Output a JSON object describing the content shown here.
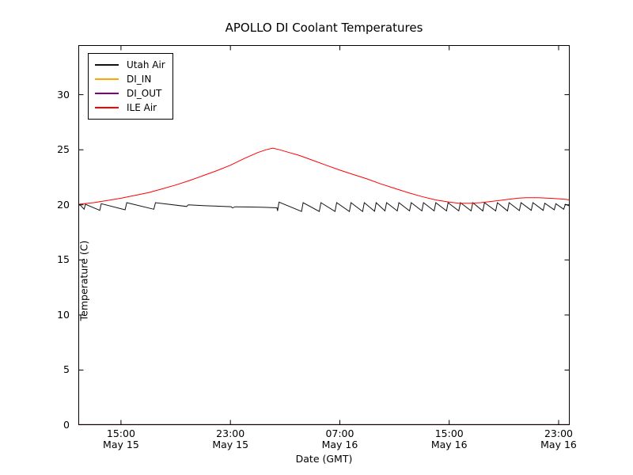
{
  "chart_data": {
    "type": "line",
    "title": "APOLLO DI Coolant Temperatures",
    "xlabel": "Date (GMT)",
    "ylabel": "Temperature (C)",
    "x_unit": "hours since May 15 00:00 GMT",
    "xlim_hours": [
      11.88,
      47.81
    ],
    "ylim": [
      0,
      34.5
    ],
    "y_ticks": [
      0,
      5,
      10,
      15,
      20,
      25,
      30
    ],
    "x_ticks": [
      {
        "t": 15,
        "time": "15:00",
        "date": "May 15"
      },
      {
        "t": 23,
        "time": "23:00",
        "date": "May 15"
      },
      {
        "t": 31,
        "time": "07:00",
        "date": "May 16"
      },
      {
        "t": 39,
        "time": "15:00",
        "date": "May 16"
      },
      {
        "t": 47,
        "time": "23:00",
        "date": "May 16"
      }
    ],
    "grid": false,
    "legend": {
      "position": "upper left",
      "entries": [
        {
          "label": "Utah Air",
          "color": "#111111"
        },
        {
          "label": "DI_IN",
          "color": "#ffa500"
        },
        {
          "label": "DI_OUT",
          "color": "#800080"
        },
        {
          "label": "ILE Air",
          "color": "#ff0000"
        }
      ]
    },
    "series": [
      {
        "name": "Utah Air",
        "color": "#111111",
        "width": 1,
        "opacity": 1,
        "points": [
          [
            11.88,
            19.95
          ],
          [
            12.0,
            20.0
          ],
          [
            12.3,
            19.6
          ],
          [
            12.4,
            20.05
          ],
          [
            13.45,
            19.5
          ],
          [
            13.56,
            20.1
          ],
          [
            15.3,
            19.55
          ],
          [
            15.42,
            20.2
          ],
          [
            17.4,
            19.6
          ],
          [
            17.52,
            20.2
          ],
          [
            19.8,
            19.85
          ],
          [
            19.92,
            20.0
          ],
          [
            21.0,
            19.93
          ],
          [
            22.0,
            19.88
          ],
          [
            23.05,
            19.83
          ],
          [
            23.15,
            19.72
          ],
          [
            23.35,
            19.82
          ],
          [
            24.5,
            19.8
          ],
          [
            25.5,
            19.77
          ],
          [
            26.4,
            19.73
          ],
          [
            26.45,
            19.45
          ],
          [
            26.55,
            20.25
          ],
          [
            28.2,
            19.4
          ],
          [
            28.32,
            20.2
          ],
          [
            29.5,
            19.4
          ],
          [
            29.62,
            20.2
          ],
          [
            30.65,
            19.4
          ],
          [
            30.77,
            20.2
          ],
          [
            31.7,
            19.4
          ],
          [
            31.82,
            20.2
          ],
          [
            32.67,
            19.4
          ],
          [
            32.79,
            20.2
          ],
          [
            33.54,
            19.42
          ],
          [
            33.66,
            20.2
          ],
          [
            34.3,
            19.45
          ],
          [
            34.42,
            20.2
          ],
          [
            35.2,
            19.45
          ],
          [
            35.32,
            20.2
          ],
          [
            36.1,
            19.45
          ],
          [
            36.22,
            20.2
          ],
          [
            37.0,
            19.45
          ],
          [
            37.12,
            20.2
          ],
          [
            37.9,
            19.45
          ],
          [
            38.02,
            20.2
          ],
          [
            38.8,
            19.45
          ],
          [
            38.92,
            20.2
          ],
          [
            39.7,
            19.45
          ],
          [
            39.82,
            20.2
          ],
          [
            40.6,
            19.45
          ],
          [
            40.72,
            20.2
          ],
          [
            41.46,
            19.45
          ],
          [
            41.58,
            20.2
          ],
          [
            42.4,
            19.45
          ],
          [
            42.52,
            20.2
          ],
          [
            43.26,
            19.45
          ],
          [
            43.38,
            20.2
          ],
          [
            44.13,
            19.48
          ],
          [
            44.25,
            20.2
          ],
          [
            45.0,
            19.5
          ],
          [
            45.12,
            20.2
          ],
          [
            45.87,
            19.5
          ],
          [
            45.99,
            20.15
          ],
          [
            46.68,
            19.55
          ],
          [
            46.8,
            20.1
          ],
          [
            47.37,
            19.6
          ],
          [
            47.49,
            20.05
          ],
          [
            47.81,
            19.9
          ]
        ]
      },
      {
        "name": "DI_IN",
        "color": "#ffa500",
        "width": 1,
        "opacity": 1,
        "points": [
          [
            11.88,
            0
          ],
          [
            47.81,
            0
          ]
        ]
      },
      {
        "name": "DI_OUT",
        "color": "#800080",
        "width": 1,
        "opacity": 0.8,
        "points": [
          [
            11.88,
            0
          ],
          [
            47.81,
            0
          ]
        ]
      },
      {
        "name": "ILE Air",
        "color": "#ff0000",
        "width": 1,
        "opacity": 1,
        "points": [
          [
            11.88,
            20.05
          ],
          [
            13,
            20.2
          ],
          [
            14,
            20.4
          ],
          [
            15,
            20.6
          ],
          [
            16,
            20.85
          ],
          [
            17,
            21.1
          ],
          [
            18,
            21.45
          ],
          [
            19,
            21.8
          ],
          [
            20,
            22.2
          ],
          [
            21,
            22.65
          ],
          [
            22,
            23.1
          ],
          [
            23,
            23.6
          ],
          [
            24,
            24.2
          ],
          [
            25,
            24.75
          ],
          [
            25.6,
            25.0
          ],
          [
            26.1,
            25.15
          ],
          [
            26.6,
            25.0
          ],
          [
            27.3,
            24.75
          ],
          [
            28,
            24.5
          ],
          [
            29,
            24.05
          ],
          [
            30,
            23.6
          ],
          [
            31,
            23.15
          ],
          [
            32,
            22.75
          ],
          [
            33,
            22.35
          ],
          [
            34,
            21.9
          ],
          [
            35,
            21.5
          ],
          [
            36,
            21.1
          ],
          [
            37,
            20.75
          ],
          [
            38,
            20.45
          ],
          [
            39,
            20.25
          ],
          [
            39.7,
            20.15
          ],
          [
            40.5,
            20.15
          ],
          [
            41.3,
            20.2
          ],
          [
            42,
            20.3
          ],
          [
            43,
            20.45
          ],
          [
            44,
            20.6
          ],
          [
            44.6,
            20.65
          ],
          [
            45.5,
            20.65
          ],
          [
            46.3,
            20.6
          ],
          [
            47,
            20.55
          ],
          [
            47.5,
            20.5
          ],
          [
            47.81,
            20.45
          ]
        ]
      }
    ]
  }
}
